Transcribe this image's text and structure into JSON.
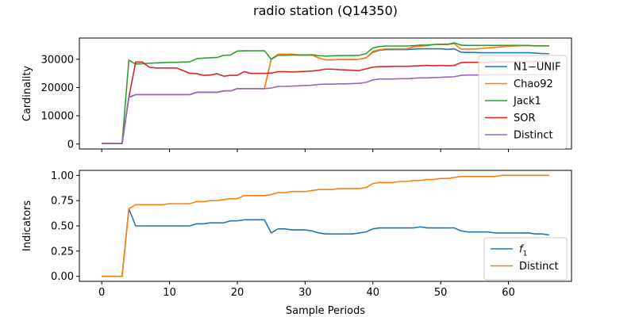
{
  "chart_data": {
    "type": "line",
    "title": "radio station (Q14350)",
    "xlabel": "Sample Periods",
    "xlim": [
      -3.3,
      69.3
    ],
    "x_ticks": [
      0,
      10,
      20,
      30,
      40,
      50,
      60
    ],
    "x": [
      0,
      1,
      2,
      3,
      4,
      5,
      6,
      7,
      8,
      9,
      10,
      11,
      12,
      13,
      14,
      15,
      16,
      17,
      18,
      19,
      20,
      21,
      22,
      23,
      24,
      25,
      26,
      27,
      28,
      29,
      30,
      31,
      32,
      33,
      34,
      35,
      36,
      37,
      38,
      39,
      40,
      41,
      42,
      43,
      44,
      45,
      46,
      47,
      48,
      49,
      50,
      51,
      52,
      53,
      54,
      55,
      56,
      57,
      58,
      59,
      60,
      61,
      62,
      63,
      64,
      65,
      66
    ],
    "panels": [
      {
        "ylabel": "Cardinality",
        "ylim": [
          -1750,
          37500
        ],
        "y_ticks": [
          0,
          10000,
          20000,
          30000
        ],
        "y_tick_labels": [
          "0",
          "10000",
          "20000",
          "30000"
        ],
        "legend_position": "lower-right",
        "series": [
          {
            "name": "N1−UNIF",
            "color": "#1f77b4",
            "values": [
              200,
              200,
              200,
              200,
              16500,
              17500,
              17500,
              17500,
              17500,
              17500,
              17500,
              17500,
              17500,
              17500,
              18300,
              18300,
              18300,
              18300,
              18800,
              18800,
              19600,
              19600,
              19600,
              19600,
              19600,
              30000,
              31700,
              31700,
              31700,
              31500,
              31500,
              31500,
              30500,
              29800,
              29800,
              29900,
              29900,
              29900,
              30000,
              30500,
              32500,
              33200,
              33400,
              33400,
              33400,
              33400,
              33600,
              33700,
              33700,
              33700,
              33700,
              33500,
              33700,
              32500,
              32400,
              32400,
              32300,
              32300,
              32300,
              32300,
              32300,
              32300,
              32300,
              32300,
              32200,
              32000,
              32000
            ]
          },
          {
            "name": "Chao92",
            "color": "#ff7f0e",
            "values": [
              200,
              200,
              200,
              200,
              16500,
              17500,
              17500,
              17500,
              17500,
              17500,
              17500,
              17500,
              17500,
              17500,
              18300,
              18300,
              18300,
              18300,
              18800,
              18800,
              19600,
              19600,
              19600,
              19600,
              19600,
              30000,
              31800,
              31800,
              31800,
              31600,
              31500,
              31500,
              30500,
              29800,
              29800,
              29900,
              29900,
              29900,
              30000,
              30500,
              32800,
              33400,
              33700,
              33700,
              33700,
              33700,
              34400,
              34600,
              34800,
              35200,
              35200,
              35200,
              35500,
              33600,
              33600,
              33600,
              33800,
              34000,
              34200,
              34400,
              34600,
              34700,
              34800,
              34800,
              34800,
              34800,
              34800
            ]
          },
          {
            "name": "Jack1",
            "color": "#2ca02c",
            "values": [
              200,
              200,
              200,
              200,
              29700,
              28300,
              28400,
              28600,
              28700,
              28800,
              28900,
              28900,
              29000,
              29100,
              30200,
              30400,
              30500,
              30600,
              31400,
              31500,
              32900,
              33000,
              33000,
              33000,
              33000,
              30000,
              31400,
              31400,
              31500,
              31500,
              31500,
              31600,
              31300,
              31100,
              31200,
              31300,
              31300,
              31300,
              31400,
              32000,
              34000,
              34500,
              34700,
              34700,
              34700,
              34700,
              34800,
              35000,
              35000,
              35200,
              35300,
              35300,
              35800,
              35000,
              34900,
              34900,
              34900,
              34900,
              34900,
              34900,
              34900,
              34900,
              34900,
              34900,
              34700,
              34700,
              34700
            ]
          },
          {
            "name": "SOR",
            "color": "#d62728",
            "values": [
              200,
              200,
              200,
              200,
              16500,
              29000,
              29000,
              27200,
              26900,
              26900,
              26900,
              26900,
              26000,
              25000,
              24900,
              24300,
              24400,
              24900,
              24000,
              24300,
              24300,
              25600,
              25000,
              25000,
              25000,
              25100,
              25600,
              25600,
              25500,
              25600,
              25700,
              25800,
              26100,
              26500,
              26500,
              26300,
              26200,
              26100,
              26000,
              26600,
              27200,
              27400,
              27400,
              27500,
              27500,
              27500,
              27600,
              27700,
              27800,
              27700,
              27800,
              27700,
              27800,
              28800,
              28900,
              28900,
              28900,
              28900,
              29000,
              29100,
              29100,
              29100,
              29100,
              29200,
              29200,
              29200,
              29200
            ]
          },
          {
            "name": "Distinct",
            "color": "#9467bd",
            "values": [
              200,
              200,
              200,
              200,
              16500,
              17500,
              17500,
              17500,
              17500,
              17500,
              17500,
              17500,
              17500,
              17500,
              18300,
              18300,
              18300,
              18300,
              18800,
              18800,
              19600,
              19600,
              19600,
              19600,
              19600,
              19800,
              20400,
              20400,
              20500,
              20600,
              20700,
              20800,
              21100,
              21200,
              21200,
              21300,
              21300,
              21400,
              21500,
              21800,
              22700,
              23000,
              23000,
              23000,
              23100,
              23100,
              23300,
              23400,
              23400,
              23500,
              23600,
              23700,
              23800,
              24300,
              24400,
              24400,
              24400,
              24400,
              24500,
              24500,
              24500,
              24500,
              24500,
              24500,
              24500,
              24500,
              24500
            ]
          }
        ]
      },
      {
        "ylabel": "Indicators",
        "ylim": [
          -0.05,
          1.05
        ],
        "y_ticks": [
          0,
          0.25,
          0.5,
          0.75,
          1.0
        ],
        "y_tick_labels": [
          "0.00",
          "0.25",
          "0.50",
          "0.75",
          "1.00"
        ],
        "legend_position": "lower-right",
        "series": [
          {
            "name": "f1",
            "label_main": "f",
            "label_sub": "1",
            "color": "#1f77b4",
            "values": [
              0,
              0,
              0,
              0,
              0.67,
              0.5,
              0.5,
              0.5,
              0.5,
              0.5,
              0.5,
              0.5,
              0.5,
              0.5,
              0.52,
              0.52,
              0.53,
              0.53,
              0.53,
              0.55,
              0.55,
              0.56,
              0.56,
              0.56,
              0.56,
              0.43,
              0.47,
              0.47,
              0.46,
              0.46,
              0.46,
              0.45,
              0.43,
              0.42,
              0.42,
              0.42,
              0.42,
              0.42,
              0.43,
              0.44,
              0.47,
              0.48,
              0.48,
              0.48,
              0.48,
              0.48,
              0.48,
              0.49,
              0.48,
              0.48,
              0.48,
              0.48,
              0.48,
              0.45,
              0.44,
              0.44,
              0.44,
              0.44,
              0.43,
              0.43,
              0.43,
              0.43,
              0.43,
              0.43,
              0.42,
              0.42,
              0.41
            ]
          },
          {
            "name": "Distinct",
            "color": "#ff7f0e",
            "values": [
              0,
              0,
              0,
              0,
              0.67,
              0.71,
              0.71,
              0.71,
              0.71,
              0.71,
              0.72,
              0.72,
              0.72,
              0.72,
              0.74,
              0.74,
              0.75,
              0.75,
              0.76,
              0.77,
              0.77,
              0.8,
              0.8,
              0.8,
              0.8,
              0.81,
              0.83,
              0.83,
              0.84,
              0.84,
              0.84,
              0.85,
              0.86,
              0.86,
              0.86,
              0.87,
              0.87,
              0.87,
              0.87,
              0.88,
              0.92,
              0.93,
              0.93,
              0.93,
              0.94,
              0.94,
              0.95,
              0.95,
              0.96,
              0.96,
              0.97,
              0.97,
              0.98,
              0.99,
              0.99,
              0.99,
              0.99,
              0.99,
              0.99,
              1.0,
              1.0,
              1.0,
              1.0,
              1.0,
              1.0,
              1.0,
              1.0
            ]
          }
        ]
      }
    ]
  }
}
